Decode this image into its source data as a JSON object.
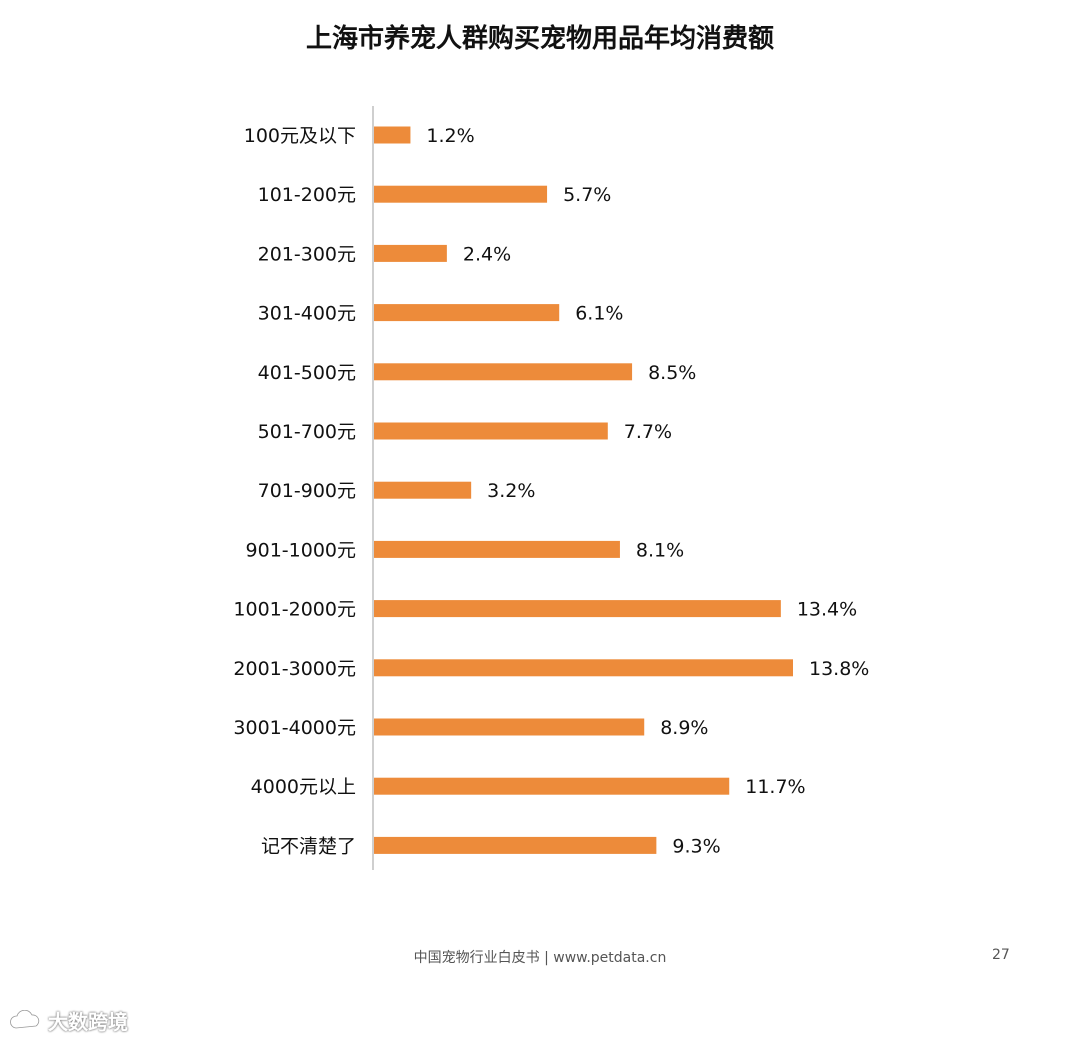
{
  "chart_data": {
    "type": "bar",
    "orientation": "horizontal",
    "title": "上海市养宠人群购买宠物用品年均消费额",
    "categories": [
      "100元及以下",
      "101-200元",
      "201-300元",
      "301-400元",
      "401-500元",
      "501-700元",
      "701-900元",
      "901-1000元",
      "1001-2000元",
      "2001-3000元",
      "3001-4000元",
      "4000元以上",
      "记不清楚了"
    ],
    "values": [
      1.2,
      5.7,
      2.4,
      6.1,
      8.5,
      7.7,
      3.2,
      8.1,
      13.4,
      13.8,
      8.9,
      11.7,
      9.3
    ],
    "value_labels": [
      "1.2%",
      "5.7%",
      "2.4%",
      "6.1%",
      "8.5%",
      "7.7%",
      "3.2%",
      "8.1%",
      "13.4%",
      "13.8%",
      "8.9%",
      "11.7%",
      "9.3%"
    ],
    "xlim": [
      0,
      13.8
    ],
    "grid": false,
    "bar_color": "#ED8B3A"
  },
  "footer": {
    "source": "中国宠物行业白皮书 | www.petdata.cn",
    "page_number": "27"
  },
  "watermark": {
    "text": "大数跨境",
    "icon": "cloud-logo-icon"
  }
}
